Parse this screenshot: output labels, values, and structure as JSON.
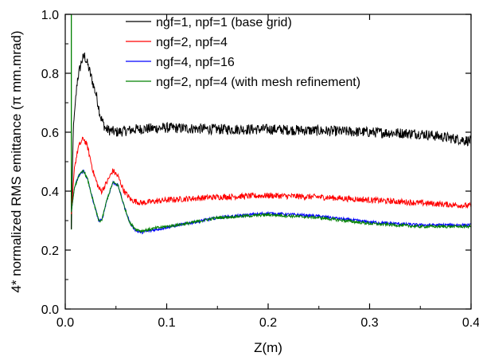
{
  "chart_data": {
    "type": "line",
    "xlabel": "Z(m)",
    "ylabel": "4* normalized RMS emittance (π mm.mrad)",
    "xlim": [
      0.0,
      0.4
    ],
    "ylim": [
      0.0,
      1.0
    ],
    "xticks": [
      "0.0",
      "0.1",
      "0.2",
      "0.3",
      "0.4"
    ],
    "yticks": [
      "0.0",
      "0.2",
      "0.4",
      "0.6",
      "0.8",
      "1.0"
    ],
    "grid": false,
    "legend_position": "top-right",
    "series": [
      {
        "name": "ngf=1, npf=1 (base grid)",
        "color": "#000000",
        "noise": 0.018,
        "points": [
          [
            0.006,
            0.27
          ],
          [
            0.008,
            0.62
          ],
          [
            0.012,
            0.78
          ],
          [
            0.016,
            0.84
          ],
          [
            0.019,
            0.86
          ],
          [
            0.023,
            0.82
          ],
          [
            0.027,
            0.77
          ],
          [
            0.031,
            0.72
          ],
          [
            0.035,
            0.65
          ],
          [
            0.04,
            0.61
          ],
          [
            0.05,
            0.6
          ],
          [
            0.07,
            0.61
          ],
          [
            0.1,
            0.615
          ],
          [
            0.15,
            0.61
          ],
          [
            0.2,
            0.61
          ],
          [
            0.25,
            0.605
          ],
          [
            0.3,
            0.6
          ],
          [
            0.35,
            0.595
          ],
          [
            0.4,
            0.57
          ]
        ]
      },
      {
        "name": "ngf=2, npf=4",
        "color": "#ff0000",
        "noise": 0.01,
        "points": [
          [
            0.006,
            0.32
          ],
          [
            0.009,
            0.48
          ],
          [
            0.013,
            0.55
          ],
          [
            0.018,
            0.58
          ],
          [
            0.022,
            0.55
          ],
          [
            0.028,
            0.46
          ],
          [
            0.033,
            0.41
          ],
          [
            0.036,
            0.4
          ],
          [
            0.041,
            0.43
          ],
          [
            0.047,
            0.47
          ],
          [
            0.052,
            0.45
          ],
          [
            0.058,
            0.4
          ],
          [
            0.065,
            0.37
          ],
          [
            0.075,
            0.36
          ],
          [
            0.1,
            0.37
          ],
          [
            0.15,
            0.38
          ],
          [
            0.2,
            0.385
          ],
          [
            0.25,
            0.38
          ],
          [
            0.3,
            0.37
          ],
          [
            0.35,
            0.36
          ],
          [
            0.4,
            0.35
          ]
        ]
      },
      {
        "name": "ngf=4, npf=16",
        "color": "#0000ff",
        "noise": 0.005,
        "points": [
          [
            0.006,
            0.33
          ],
          [
            0.009,
            0.41
          ],
          [
            0.013,
            0.45
          ],
          [
            0.018,
            0.47
          ],
          [
            0.022,
            0.44
          ],
          [
            0.028,
            0.36
          ],
          [
            0.033,
            0.3
          ],
          [
            0.036,
            0.3
          ],
          [
            0.041,
            0.37
          ],
          [
            0.047,
            0.43
          ],
          [
            0.052,
            0.42
          ],
          [
            0.058,
            0.35
          ],
          [
            0.064,
            0.29
          ],
          [
            0.07,
            0.265
          ],
          [
            0.075,
            0.26
          ],
          [
            0.09,
            0.27
          ],
          [
            0.12,
            0.29
          ],
          [
            0.15,
            0.31
          ],
          [
            0.2,
            0.325
          ],
          [
            0.25,
            0.315
          ],
          [
            0.3,
            0.295
          ],
          [
            0.35,
            0.285
          ],
          [
            0.4,
            0.285
          ]
        ]
      },
      {
        "name": "ngf=2, npf=4 (with mesh refinement)",
        "color": "#008000",
        "noise": 0.005,
        "points": [
          [
            0.006,
            0.33
          ],
          [
            0.009,
            0.41
          ],
          [
            0.013,
            0.45
          ],
          [
            0.018,
            0.47
          ],
          [
            0.022,
            0.44
          ],
          [
            0.028,
            0.36
          ],
          [
            0.033,
            0.3
          ],
          [
            0.036,
            0.3
          ],
          [
            0.041,
            0.37
          ],
          [
            0.047,
            0.43
          ],
          [
            0.052,
            0.42
          ],
          [
            0.058,
            0.35
          ],
          [
            0.064,
            0.29
          ],
          [
            0.07,
            0.27
          ],
          [
            0.075,
            0.265
          ],
          [
            0.09,
            0.275
          ],
          [
            0.12,
            0.29
          ],
          [
            0.15,
            0.31
          ],
          [
            0.2,
            0.32
          ],
          [
            0.25,
            0.31
          ],
          [
            0.3,
            0.29
          ],
          [
            0.35,
            0.28
          ],
          [
            0.4,
            0.28
          ]
        ]
      }
    ],
    "spike": {
      "x": 0.006,
      "y_from": 0.27,
      "y_to": 1.0
    }
  }
}
